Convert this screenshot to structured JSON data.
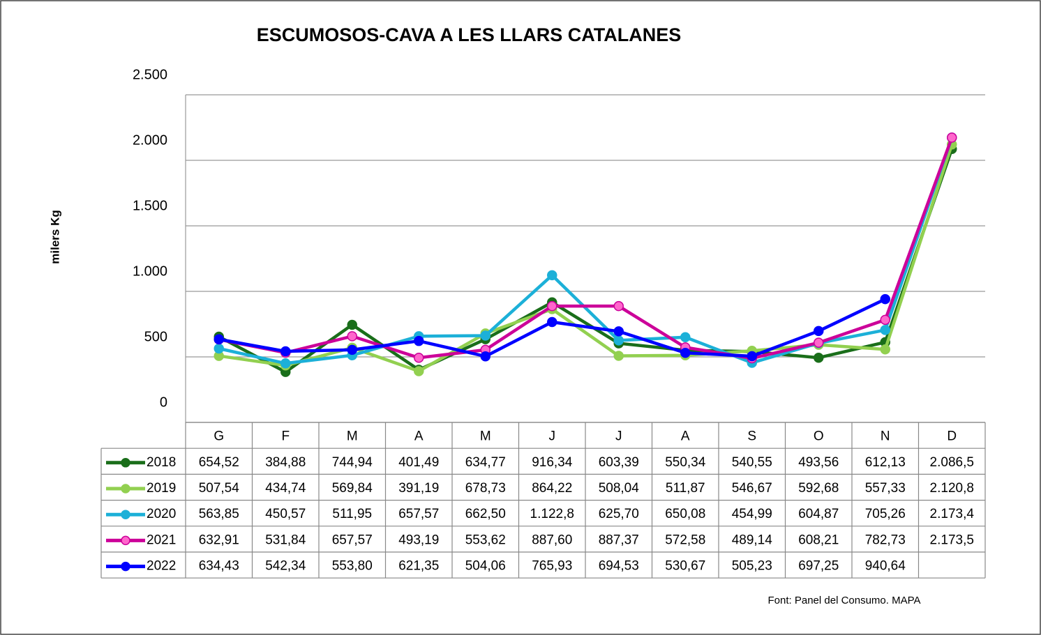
{
  "chart_data": {
    "type": "line",
    "title": "ESCUMOSOS-CAVA  A LES LLARS CATALANES",
    "y_label": "milers Kg",
    "source": "Font:  Panel del Consumo. MAPA",
    "categories": [
      "G",
      "F",
      "M",
      "A",
      "M",
      "J",
      "J",
      "A",
      "S",
      "O",
      "N",
      "D"
    ],
    "ylim": [
      0,
      2500
    ],
    "yticks": [
      0,
      500,
      {
        "value": 1000,
        "label": "1.000"
      },
      {
        "value": 1500,
        "label": "1.500"
      },
      {
        "value": 2000,
        "label": "2.000"
      },
      {
        "value": 2500,
        "label": "2.500"
      }
    ],
    "grid": true,
    "series": [
      {
        "name": "2018",
        "color": "#1a6e1a",
        "marker_fill": "#1a6e1a",
        "values": [
          654.52,
          384.88,
          744.94,
          401.49,
          634.77,
          916.34,
          603.39,
          550.34,
          540.55,
          493.56,
          612.13,
          2086.5
        ],
        "value_labels": [
          "654,52",
          "384,88",
          "744,94",
          "401,49",
          "634,77",
          "916,34",
          "603,39",
          "550,34",
          "540,55",
          "493,56",
          "612,13",
          "2.086,5"
        ]
      },
      {
        "name": "2019",
        "color": "#92d050",
        "marker_fill": "#92d050",
        "values": [
          507.54,
          434.74,
          569.84,
          391.19,
          678.73,
          864.22,
          508.04,
          511.87,
          546.67,
          592.68,
          557.33,
          2120.8
        ],
        "value_labels": [
          "507,54",
          "434,74",
          "569,84",
          "391,19",
          "678,73",
          "864,22",
          "508,04",
          "511,87",
          "546,67",
          "592,68",
          "557,33",
          "2.120,8"
        ]
      },
      {
        "name": "2020",
        "color": "#1cb0d8",
        "marker_fill": "#1cb0d8",
        "values": [
          563.85,
          450.57,
          511.95,
          657.57,
          662.5,
          1122.8,
          625.7,
          650.08,
          454.99,
          604.87,
          705.26,
          2173.4
        ],
        "value_labels": [
          "563,85",
          "450,57",
          "511,95",
          "657,57",
          "662,50",
          "1.122,8",
          "625,70",
          "650,08",
          "454,99",
          "604,87",
          "705,26",
          "2.173,4"
        ]
      },
      {
        "name": "2021",
        "color": "#cc0099",
        "marker_fill": "#ff66cc",
        "values": [
          632.91,
          531.84,
          657.57,
          493.19,
          553.62,
          887.6,
          887.37,
          572.58,
          489.14,
          608.21,
          782.73,
          2173.5
        ],
        "value_labels": [
          "632,91",
          "531,84",
          "657,57",
          "493,19",
          "553,62",
          "887,60",
          "887,37",
          "572,58",
          "489,14",
          "608,21",
          "782,73",
          "2.173,5"
        ]
      },
      {
        "name": "2022",
        "color": "#0000ff",
        "marker_fill": "#0000ff",
        "values": [
          634.43,
          542.34,
          553.8,
          621.35,
          504.06,
          765.93,
          694.53,
          530.67,
          505.23,
          697.25,
          940.64,
          null
        ],
        "value_labels": [
          "634,43",
          "542,34",
          "553,80",
          "621,35",
          "504,06",
          "765,93",
          "694,53",
          "530,67",
          "505,23",
          "697,25",
          "940,64",
          null
        ]
      }
    ]
  }
}
